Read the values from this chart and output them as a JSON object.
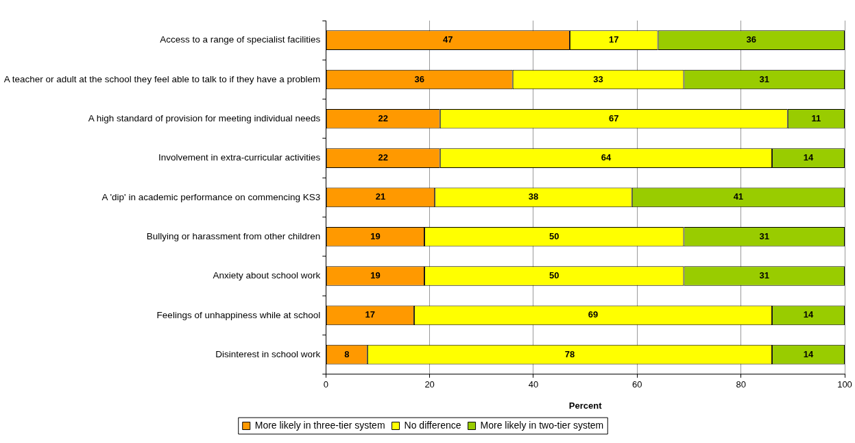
{
  "chart_data": {
    "type": "bar",
    "orientation": "horizontal",
    "stacked": true,
    "xlabel": "Percent",
    "categories": [
      "Access to a range of specialist facilities",
      "A teacher or adult at the school they feel able to talk to if they have a problem",
      "A high standard of provision for meeting individual needs",
      "Involvement in extra-curricular activities",
      "A 'dip' in academic performance on commencing KS3",
      "Bullying or harassment from other children",
      "Anxiety about school work",
      "Feelings of unhappiness while at school",
      "Disinterest in school work"
    ],
    "series": [
      {
        "name": "More likely in three-tier system",
        "color": "#ff9900",
        "values": [
          47,
          36,
          22,
          22,
          21,
          19,
          19,
          17,
          8
        ]
      },
      {
        "name": "No difference",
        "color": "#ffff00",
        "values": [
          17,
          33,
          67,
          64,
          38,
          50,
          50,
          69,
          78
        ]
      },
      {
        "name": "More likely in two-tier system",
        "color": "#99cc00",
        "values": [
          36,
          31,
          11,
          14,
          41,
          31,
          31,
          14,
          14
        ]
      }
    ],
    "xlim": [
      0,
      100
    ],
    "xticks": [
      0,
      20,
      40,
      60,
      80,
      100
    ],
    "grid": "x",
    "legend": "bottom",
    "data_labels": true
  }
}
